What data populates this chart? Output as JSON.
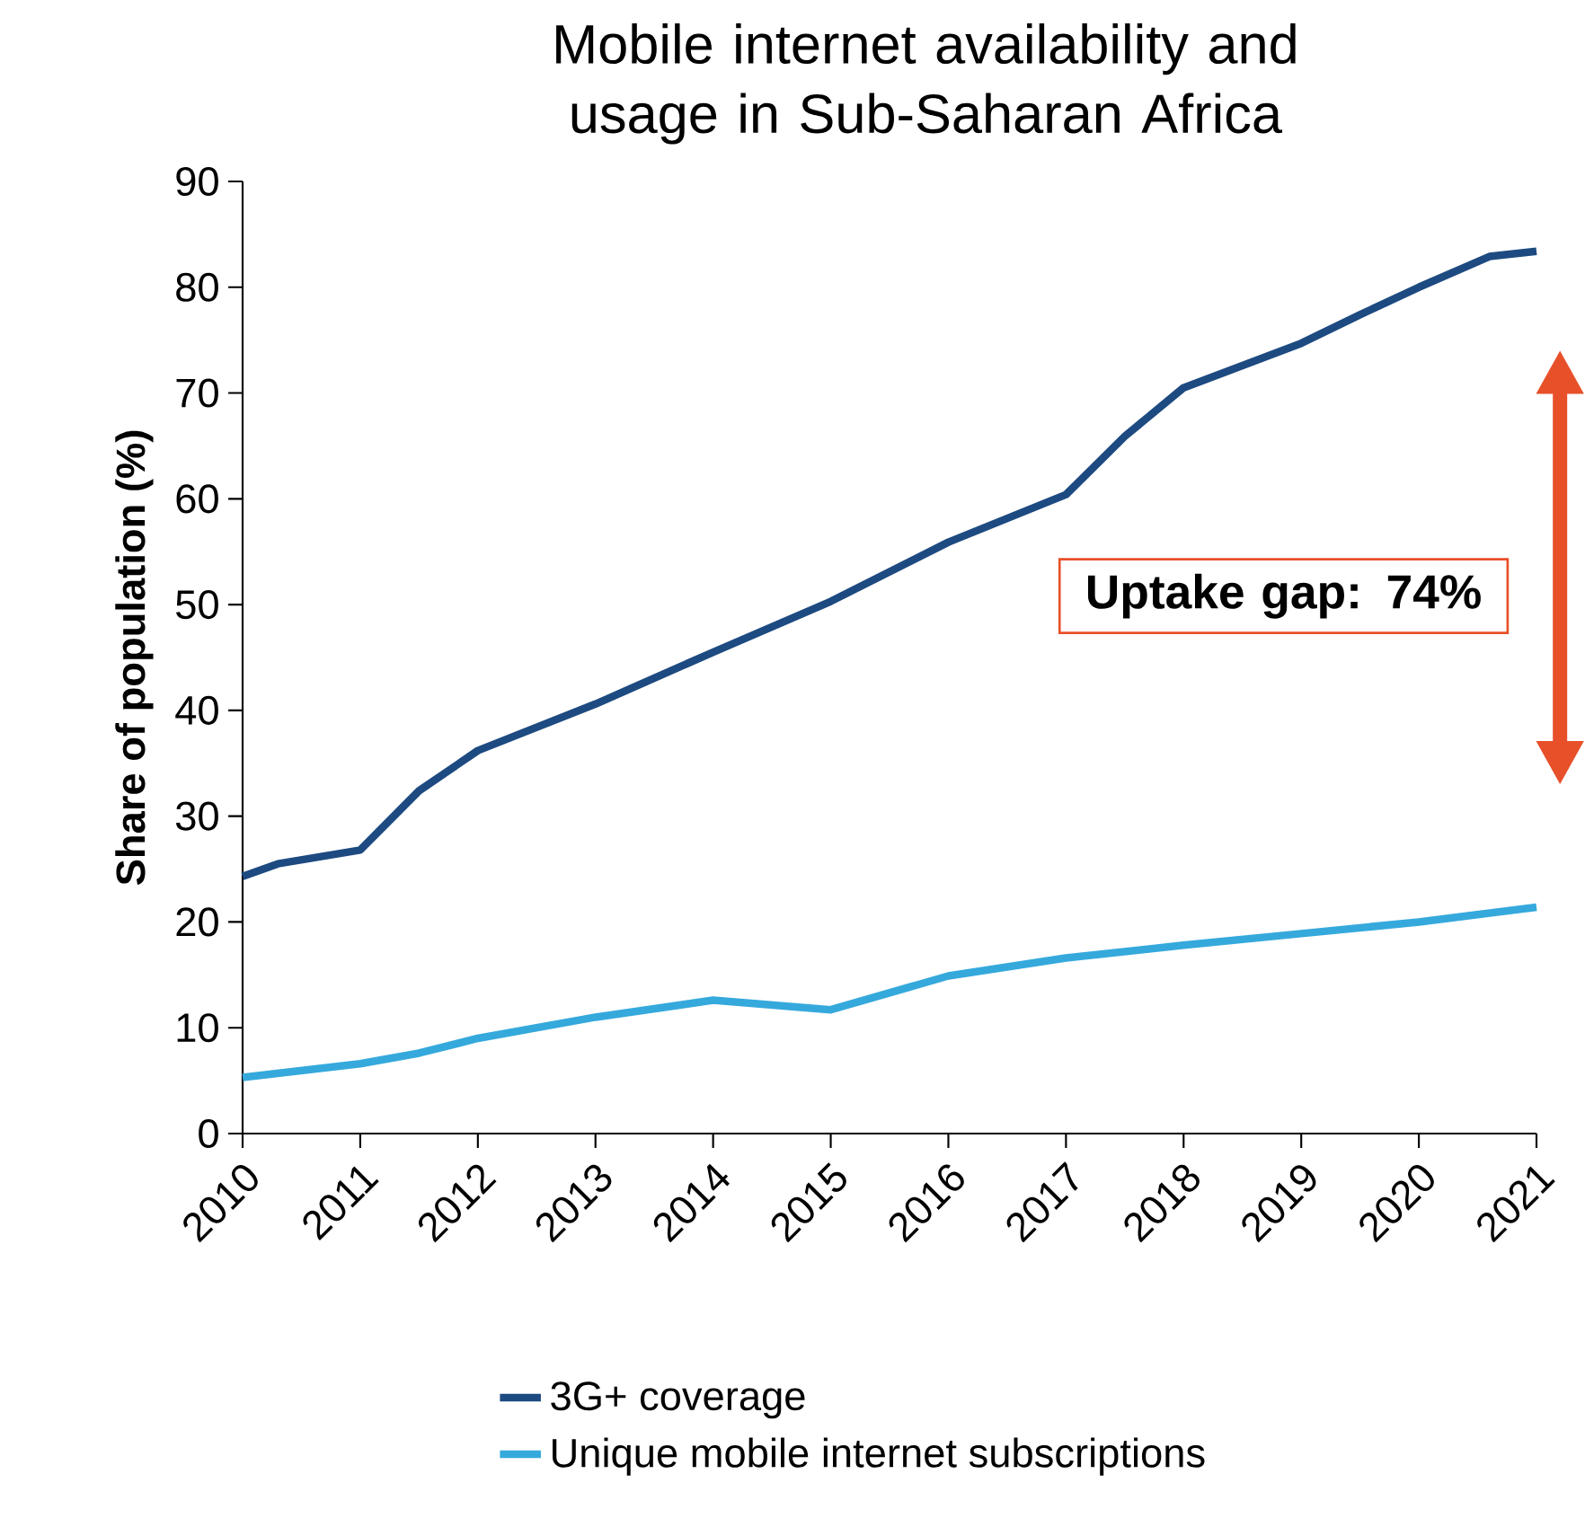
{
  "chart_data": {
    "type": "line",
    "title": "Mobile internet availability and usage in Sub-Saharan Africa",
    "ylabel": "Share of population (%)",
    "xlim": [
      2010,
      2021
    ],
    "xticks": [
      2010,
      2011,
      2012,
      2013,
      2014,
      2015,
      2016,
      2017,
      2018,
      2019,
      2020,
      2021
    ],
    "ylim": [
      0,
      90
    ],
    "yticks": [
      0,
      10,
      20,
      30,
      40,
      50,
      60,
      70,
      80,
      90
    ],
    "series": [
      {
        "name": "3G+ coverage",
        "color": "#1d4a80",
        "x": [
          2010,
          2010.3,
          2011,
          2011.5,
          2012,
          2013,
          2014,
          2015,
          2016,
          2017,
          2017.5,
          2018,
          2019,
          2019.5,
          2020,
          2020.6,
          2021
        ],
        "values": [
          24.3,
          25.5,
          26.8,
          32.4,
          36.2,
          40.6,
          45.5,
          50.3,
          55.9,
          60.4,
          65.9,
          70.5,
          74.7,
          77.4,
          80,
          82.9,
          83.4
        ]
      },
      {
        "name": "Unique mobile internet subscriptions",
        "color": "#35a9dc",
        "x": [
          2010,
          2011,
          2011.5,
          2012,
          2013,
          2014,
          2015,
          2016,
          2017,
          2018,
          2019,
          2020,
          2021
        ],
        "values": [
          5.3,
          6.6,
          7.6,
          9,
          11,
          12.6,
          11.7,
          14.9,
          16.6,
          17.8,
          18.9,
          20,
          21.4
        ]
      }
    ],
    "annotations": [
      "Uptake gap: 74%"
    ],
    "legend": "bottom"
  }
}
